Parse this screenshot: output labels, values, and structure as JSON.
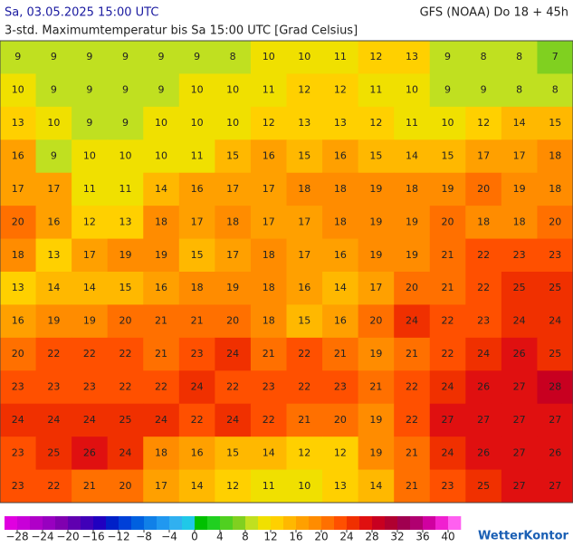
{
  "header": {
    "datetime": "Sa, 03.05.2025 15:00 UTC",
    "model": "GFS (NOAA) Do 18 + 45h",
    "subtitle": "3-std. Maximumtemperatur bis Sa 15:00 UTC [Grad Celsius]"
  },
  "map": {
    "values": [
      [
        9,
        9,
        9,
        9,
        9,
        9,
        8,
        10,
        10,
        11,
        12,
        13,
        9,
        8,
        8,
        7
      ],
      [
        10,
        9,
        9,
        9,
        9,
        10,
        10,
        11,
        12,
        12,
        11,
        10,
        9,
        9,
        8,
        8
      ],
      [
        13,
        10,
        9,
        9,
        10,
        10,
        10,
        12,
        13,
        13,
        12,
        11,
        10,
        12,
        14,
        15
      ],
      [
        16,
        9,
        10,
        10,
        10,
        11,
        15,
        16,
        15,
        16,
        15,
        14,
        15,
        17,
        17,
        18
      ],
      [
        17,
        17,
        11,
        11,
        14,
        16,
        17,
        17,
        18,
        18,
        19,
        18,
        19,
        20,
        19,
        18
      ],
      [
        20,
        16,
        12,
        13,
        18,
        17,
        18,
        17,
        17,
        18,
        19,
        19,
        20,
        18,
        18,
        20
      ],
      [
        18,
        13,
        17,
        19,
        19,
        15,
        17,
        18,
        17,
        16,
        19,
        19,
        21,
        22,
        23,
        23
      ],
      [
        13,
        14,
        14,
        15,
        16,
        18,
        19,
        18,
        16,
        14,
        17,
        20,
        21,
        22,
        25,
        25
      ],
      [
        16,
        19,
        19,
        20,
        21,
        21,
        20,
        18,
        15,
        16,
        20,
        24,
        22,
        23,
        24,
        24
      ],
      [
        20,
        22,
        22,
        22,
        21,
        23,
        24,
        21,
        22,
        21,
        19,
        21,
        22,
        24,
        26,
        25
      ],
      [
        23,
        23,
        23,
        22,
        22,
        24,
        22,
        23,
        22,
        23,
        21,
        22,
        24,
        26,
        27,
        28
      ],
      [
        24,
        24,
        24,
        25,
        24,
        22,
        24,
        22,
        21,
        20,
        19,
        22,
        27,
        27,
        27,
        27
      ],
      [
        23,
        25,
        26,
        24,
        18,
        16,
        15,
        14,
        12,
        12,
        19,
        21,
        24,
        26,
        27,
        26
      ],
      [
        23,
        22,
        21,
        20,
        17,
        14,
        12,
        11,
        10,
        13,
        14,
        21,
        23,
        25,
        27,
        27
      ]
    ]
  },
  "colorbar": {
    "lim": [
      -30,
      42
    ],
    "colors": [
      "#e000e0",
      "#c800d8",
      "#b000c8",
      "#9800c0",
      "#8000b0",
      "#6000b0",
      "#4000b8",
      "#2000c0",
      "#0020c8",
      "#0040d8",
      "#0060e0",
      "#1080e8",
      "#2098f0",
      "#30b0f0",
      "#20c8e8",
      "#00c000",
      "#20d020",
      "#50d020",
      "#80d020",
      "#c0e020",
      "#f0e000",
      "#ffd000",
      "#ffb800",
      "#ffa000",
      "#ff8c00",
      "#ff7000",
      "#ff5000",
      "#f03000",
      "#e01010",
      "#c80020",
      "#b00030",
      "#a00050",
      "#b00070",
      "#d000a0",
      "#f020d0",
      "#ff60f0"
    ],
    "ticks": [
      {
        "value": -28,
        "label": "−28"
      },
      {
        "value": -24,
        "label": "−24"
      },
      {
        "value": -20,
        "label": "−20"
      },
      {
        "value": -16,
        "label": "−16"
      },
      {
        "value": -12,
        "label": "−12"
      },
      {
        "value": -8,
        "label": "−8"
      },
      {
        "value": -4,
        "label": "−4"
      },
      0,
      4,
      8,
      12,
      16,
      20,
      24,
      28,
      32,
      36,
      40
    ]
  },
  "logo": "WetterKontor"
}
